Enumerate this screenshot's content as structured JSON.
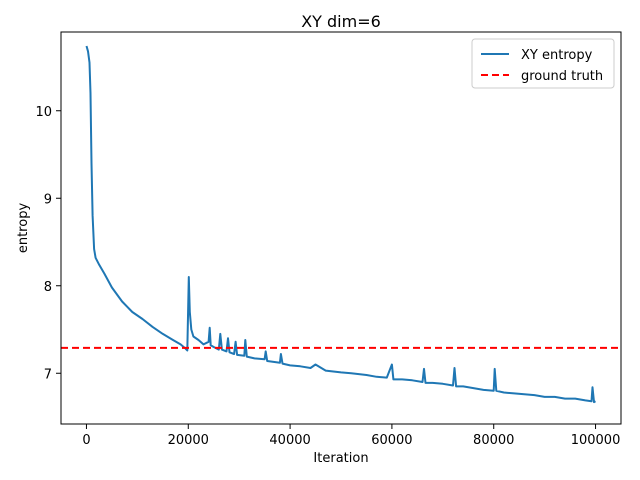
{
  "chart_data": {
    "type": "line",
    "title": "XY dim=6",
    "xlabel": "Iteration",
    "ylabel": "entropy",
    "xlim": [
      -5000,
      105000
    ],
    "ylim": [
      6.42,
      10.9
    ],
    "xticks": [
      0,
      20000,
      40000,
      60000,
      80000,
      100000
    ],
    "yticks": [
      7,
      8,
      9,
      10
    ],
    "grid": false,
    "legend_position": "top-right",
    "colors": {
      "series": "#1f77b4",
      "reference": "#ff0000"
    },
    "series": [
      {
        "name": "XY entropy",
        "style": "solid",
        "points": [
          [
            0,
            10.74
          ],
          [
            300,
            10.68
          ],
          [
            600,
            10.55
          ],
          [
            800,
            10.2
          ],
          [
            1000,
            9.4
          ],
          [
            1200,
            8.8
          ],
          [
            1500,
            8.42
          ],
          [
            1800,
            8.32
          ],
          [
            2500,
            8.24
          ],
          [
            3500,
            8.14
          ],
          [
            5000,
            7.98
          ],
          [
            7000,
            7.82
          ],
          [
            9000,
            7.7
          ],
          [
            11000,
            7.62
          ],
          [
            13000,
            7.53
          ],
          [
            15000,
            7.45
          ],
          [
            17000,
            7.38
          ],
          [
            18500,
            7.33
          ],
          [
            19500,
            7.28
          ],
          [
            19800,
            7.26
          ],
          [
            20100,
            8.1
          ],
          [
            20300,
            7.7
          ],
          [
            20600,
            7.5
          ],
          [
            21000,
            7.42
          ],
          [
            22000,
            7.38
          ],
          [
            23000,
            7.33
          ],
          [
            24000,
            7.36
          ],
          [
            24200,
            7.52
          ],
          [
            24400,
            7.32
          ],
          [
            25000,
            7.3
          ],
          [
            26000,
            7.27
          ],
          [
            26300,
            7.45
          ],
          [
            26600,
            7.27
          ],
          [
            27500,
            7.25
          ],
          [
            27800,
            7.4
          ],
          [
            28100,
            7.24
          ],
          [
            29000,
            7.22
          ],
          [
            29300,
            7.36
          ],
          [
            29600,
            7.21
          ],
          [
            31000,
            7.2
          ],
          [
            31200,
            7.38
          ],
          [
            31500,
            7.19
          ],
          [
            33000,
            7.17
          ],
          [
            35000,
            7.16
          ],
          [
            35200,
            7.25
          ],
          [
            35500,
            7.14
          ],
          [
            38000,
            7.12
          ],
          [
            38200,
            7.22
          ],
          [
            38500,
            7.11
          ],
          [
            40000,
            7.09
          ],
          [
            42000,
            7.08
          ],
          [
            44000,
            7.06
          ],
          [
            45000,
            7.1
          ],
          [
            47000,
            7.03
          ],
          [
            50000,
            7.01
          ],
          [
            52000,
            7.0
          ],
          [
            55000,
            6.98
          ],
          [
            57000,
            6.96
          ],
          [
            59000,
            6.95
          ],
          [
            60000,
            7.1
          ],
          [
            60300,
            6.93
          ],
          [
            62000,
            6.93
          ],
          [
            64000,
            6.92
          ],
          [
            66000,
            6.9
          ],
          [
            66300,
            7.05
          ],
          [
            66600,
            6.89
          ],
          [
            68000,
            6.89
          ],
          [
            70000,
            6.88
          ],
          [
            72000,
            6.86
          ],
          [
            72300,
            7.06
          ],
          [
            72600,
            6.85
          ],
          [
            74000,
            6.85
          ],
          [
            76000,
            6.83
          ],
          [
            78000,
            6.81
          ],
          [
            80000,
            6.8
          ],
          [
            80200,
            7.05
          ],
          [
            80500,
            6.8
          ],
          [
            82000,
            6.78
          ],
          [
            84000,
            6.77
          ],
          [
            86000,
            6.76
          ],
          [
            88000,
            6.75
          ],
          [
            90000,
            6.73
          ],
          [
            92000,
            6.73
          ],
          [
            94000,
            6.71
          ],
          [
            96000,
            6.71
          ],
          [
            98000,
            6.69
          ],
          [
            99200,
            6.68
          ],
          [
            99400,
            6.84
          ],
          [
            99700,
            6.67
          ],
          [
            100000,
            6.68
          ]
        ]
      },
      {
        "name": "ground truth",
        "style": "dashed",
        "y": 7.29
      }
    ]
  }
}
